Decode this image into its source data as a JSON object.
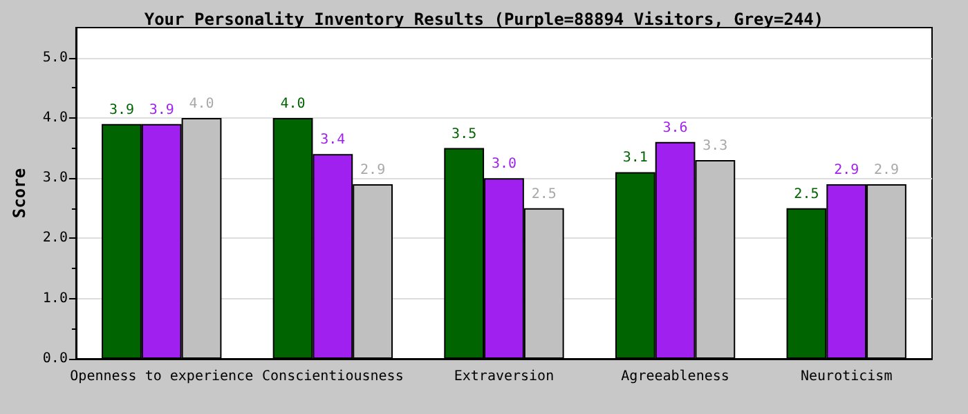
{
  "chart_data": {
    "type": "bar",
    "title": "Your Personality Inventory Results (Purple=88894 Visitors, Grey=244)",
    "ylabel": "Score",
    "categories": [
      "Openness to experience",
      "Conscientiousness",
      "Extraversion",
      "Agreeableness",
      "Neuroticism"
    ],
    "series": [
      {
        "color": "#006400",
        "values": [
          3.9,
          4.0,
          3.5,
          3.1,
          2.5
        ],
        "value_labels": [
          "3.9",
          "4.0",
          "3.5",
          "3.1",
          "2.5"
        ]
      },
      {
        "color": "#a020f0",
        "values": [
          3.9,
          3.4,
          3.0,
          3.6,
          2.9
        ],
        "value_labels": [
          "3.9",
          "3.4",
          "3.0",
          "3.6",
          "2.9"
        ]
      },
      {
        "color": "#c0c0c0",
        "values": [
          4.0,
          2.9,
          2.5,
          3.3,
          2.9
        ],
        "value_labels": [
          "4.0",
          "2.9",
          "2.5",
          "3.3",
          "2.9"
        ]
      }
    ],
    "ylim": [
      0,
      5.5
    ],
    "yticks": [
      {
        "value": 0,
        "label": "0.0"
      },
      {
        "value": 1,
        "label": "1.0"
      },
      {
        "value": 2,
        "label": "2.0"
      },
      {
        "value": 3,
        "label": "3.0"
      },
      {
        "value": 4,
        "label": "4.0"
      },
      {
        "value": 5,
        "label": "5.0"
      }
    ],
    "grid": "y"
  }
}
